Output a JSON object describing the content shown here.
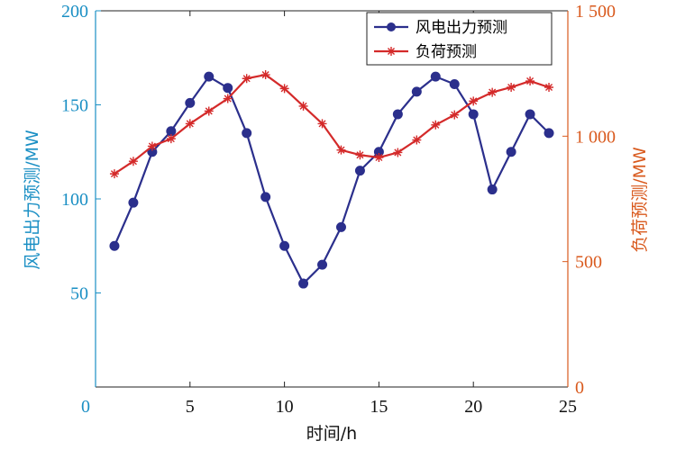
{
  "chart_data": {
    "type": "line",
    "x": [
      1,
      2,
      3,
      4,
      5,
      6,
      7,
      8,
      9,
      10,
      11,
      12,
      13,
      14,
      15,
      16,
      17,
      18,
      19,
      20,
      21,
      22,
      23,
      24
    ],
    "series": [
      {
        "name": "风电出力预测",
        "axis": "left",
        "color": "#2b2f8c",
        "marker": "circle",
        "values": [
          75,
          98,
          125,
          136,
          151,
          165,
          159,
          135,
          101,
          75,
          55,
          65,
          85,
          115,
          125,
          145,
          157,
          165,
          161,
          145,
          105,
          125,
          145,
          135
        ]
      },
      {
        "name": "负荷预测",
        "axis": "right",
        "color": "#d42a2a",
        "marker": "star",
        "values": [
          850,
          900,
          960,
          990,
          1050,
          1100,
          1150,
          1230,
          1245,
          1190,
          1120,
          1050,
          945,
          925,
          915,
          935,
          985,
          1045,
          1085,
          1140,
          1175,
          1195,
          1220,
          1195
        ]
      }
    ],
    "xlim": [
      0,
      25
    ],
    "xticks": [
      0,
      5,
      10,
      15,
      20,
      25
    ],
    "ylim_left": [
      0,
      200
    ],
    "yticks_left": [
      50,
      100,
      150,
      200
    ],
    "ylim_right": [
      0,
      1500
    ],
    "yticks_right": [
      0,
      500,
      1000,
      1500
    ],
    "ytick_labels_right": [
      "0",
      "500",
      "1 000",
      "1 500"
    ],
    "xlabel": "时间/h",
    "ylabel_left": "风电出力预测/MW",
    "ylabel_right": "负荷预测/MW",
    "legend_position": "top-right",
    "grid": false,
    "colors": {
      "left_axis": "#1a8fc4",
      "right_axis": "#d95a1e"
    }
  }
}
